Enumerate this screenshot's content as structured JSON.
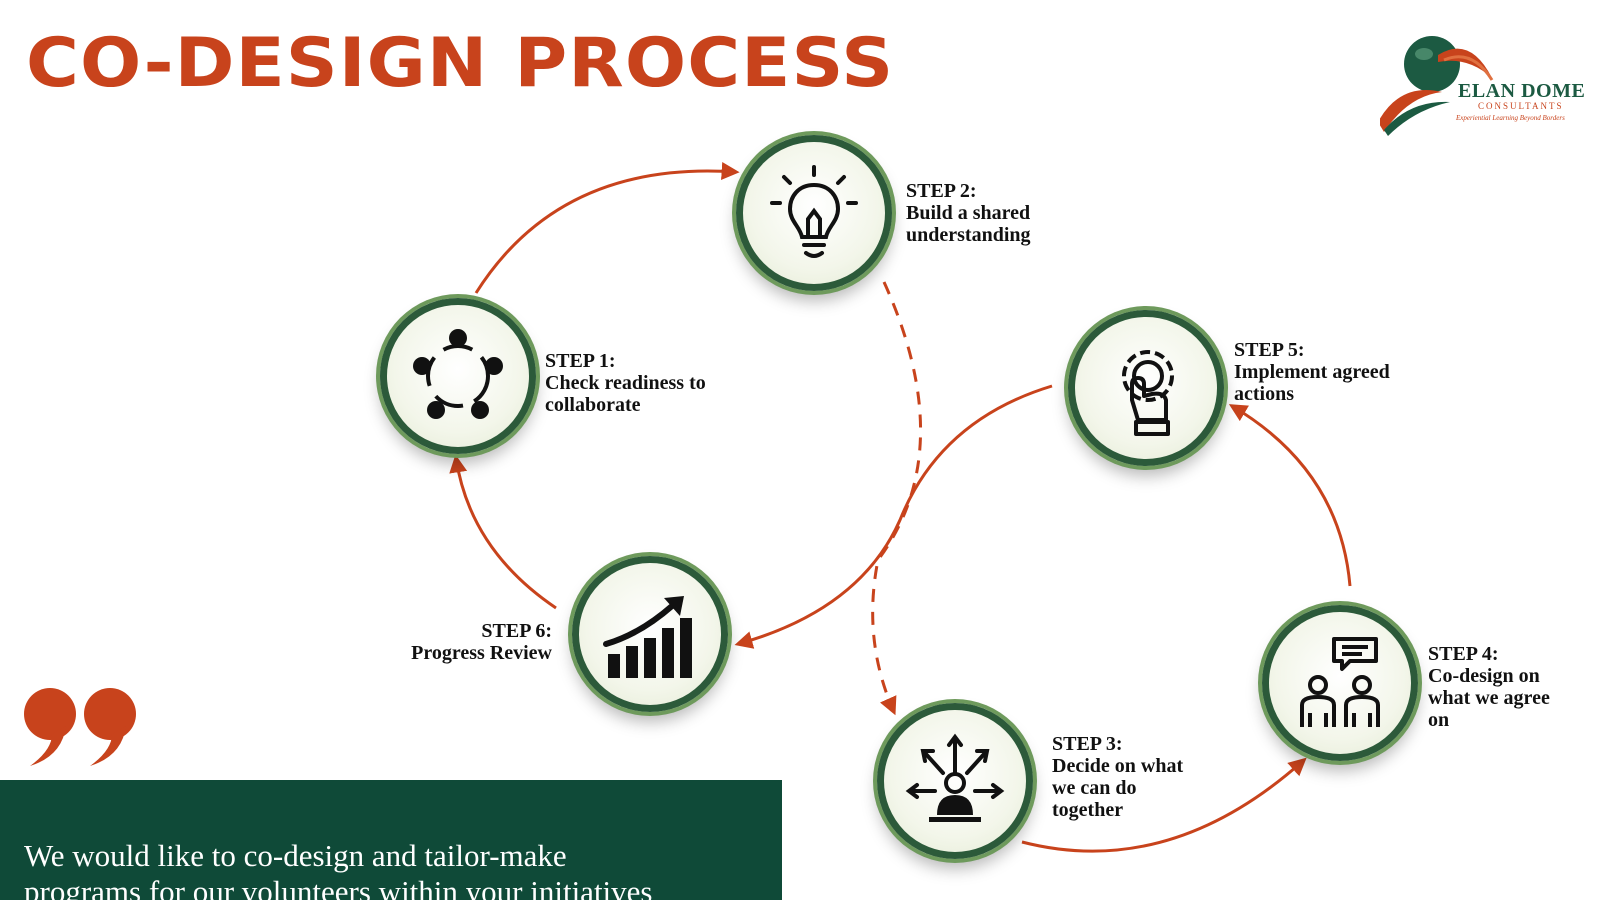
{
  "title": "CO-DESIGN PROCESS",
  "steps": [
    {
      "head": "STEP 1:",
      "text": "Check readiness to\ncollaborate",
      "icon": "collaboration-circle-icon"
    },
    {
      "head": "STEP 2:",
      "text": "Build a shared\nunderstanding",
      "icon": "lightbulb-icon"
    },
    {
      "head": "STEP 3:",
      "text": "Decide on what\nwe can do\ntogether",
      "icon": "decision-arrows-icon"
    },
    {
      "head": "STEP 4:",
      "text": "Co-design on\nwhat we agree\non",
      "icon": "people-discussion-icon"
    },
    {
      "head": "STEP 5:",
      "text": "Implement agreed\nactions",
      "icon": "gear-hand-icon"
    },
    {
      "head": "STEP 6:",
      "text": "Progress Review",
      "icon": "growth-chart-icon"
    }
  ],
  "quote": "We would like to co-design and tailor-make\nprograms for our volunteers within your initiatives",
  "logo": {
    "name": "ELAN DOME",
    "sub": "CONSULTANTS",
    "tagline": "Experiential Learning Beyond Borders"
  },
  "colors": {
    "accent": "#c8431c",
    "dark_green": "#0f4a38",
    "ring_green": "#2c5a3a",
    "arrow": "#c8431c"
  }
}
